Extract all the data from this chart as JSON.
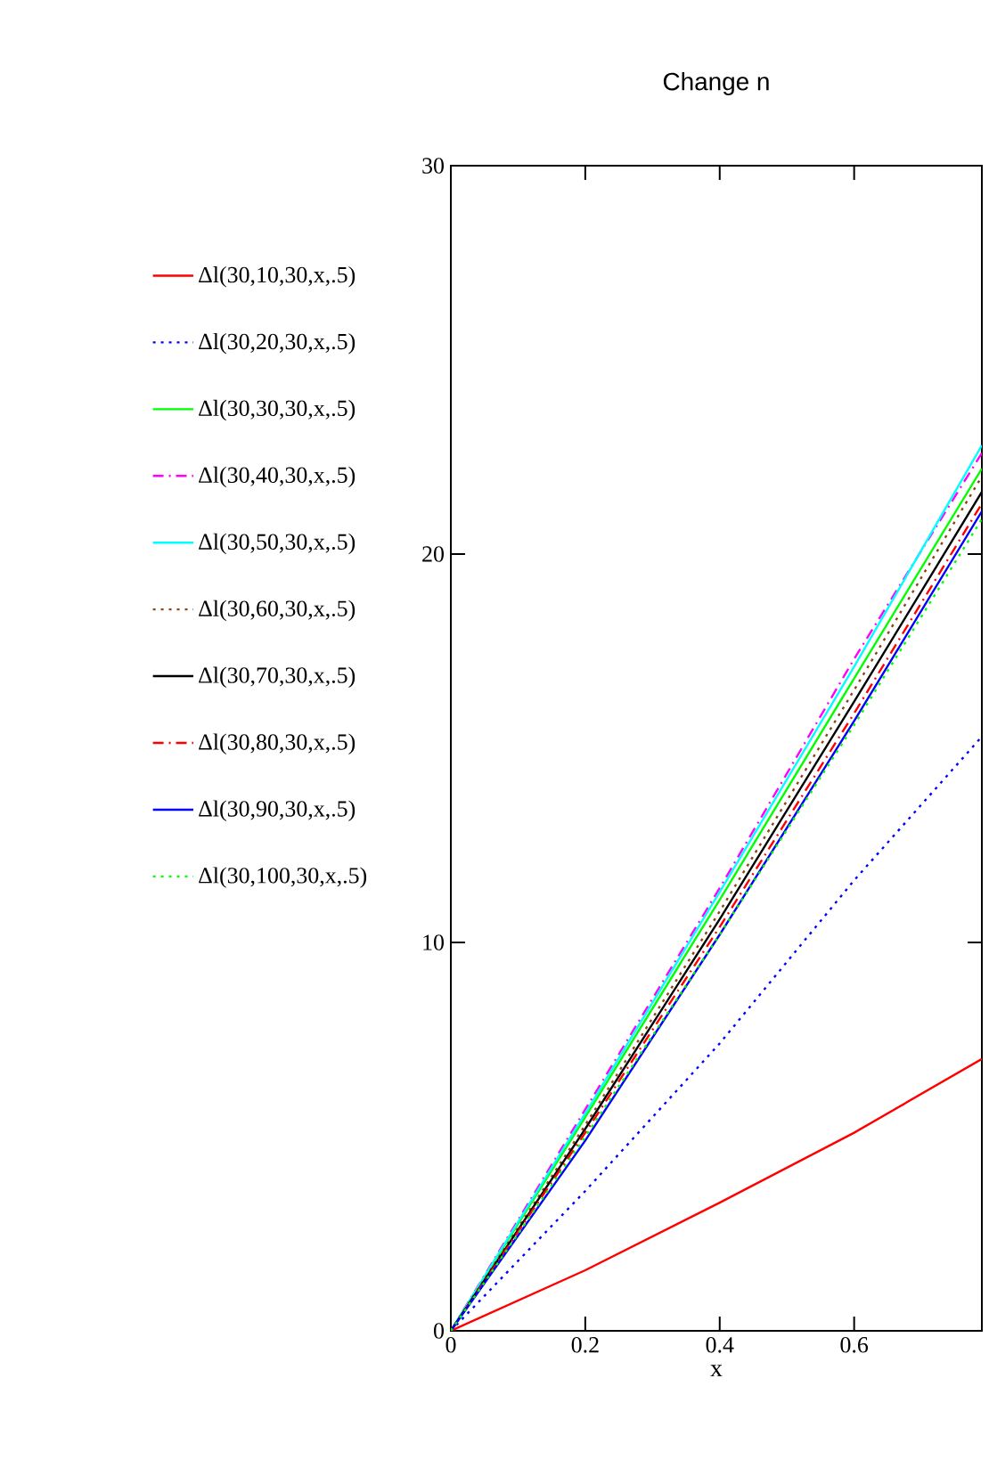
{
  "chart_data": {
    "type": "line",
    "title": "Change n",
    "xlabel": "x",
    "x": [
      0,
      0.2,
      0.4,
      0.6,
      0.79
    ],
    "xlim": [
      0,
      0.79
    ],
    "ylim": [
      0,
      30
    ],
    "xticks": [
      0,
      0.2,
      0.4,
      0.6
    ],
    "yticks": [
      0,
      10,
      20,
      30
    ],
    "grid": false,
    "legend": "left",
    "marker": "none",
    "series": [
      {
        "name": "Δl(30,10,30,x,.5)",
        "color": "#ff0000",
        "line_style": "solid",
        "values": [
          0,
          1.56,
          3.3,
          5.1,
          7.0
        ]
      },
      {
        "name": "Δl(30,20,30,x,.5)",
        "color": "#0000ff",
        "line_style": "dotted",
        "values": [
          0,
          3.6,
          7.4,
          11.6,
          15.3
        ]
      },
      {
        "name": "Δl(30,30,30,x,.5)",
        "color": "#00ff00",
        "line_style": "solid",
        "values": [
          0,
          5.5,
          11.1,
          16.8,
          22.2
        ]
      },
      {
        "name": "Δl(30,40,30,x,.5)",
        "color": "#ff00ff",
        "line_style": "dashed",
        "values": [
          0,
          5.7,
          11.4,
          17.3,
          22.6
        ]
      },
      {
        "name": "Δl(30,50,30,x,.5)",
        "color": "#00ffff",
        "line_style": "solid",
        "values": [
          0,
          5.6,
          11.3,
          17.1,
          22.8
        ]
      },
      {
        "name": "Δl(30,60,30,x,.5)",
        "color": "#8b4513",
        "line_style": "dotted",
        "values": [
          0,
          5.3,
          10.8,
          16.5,
          22.0
        ]
      },
      {
        "name": "Δl(30,70,30,x,.5)",
        "color": "#000000",
        "line_style": "solid",
        "values": [
          0,
          5.2,
          10.6,
          16.2,
          21.6
        ]
      },
      {
        "name": "Δl(30,80,30,x,.5)",
        "color": "#ff0000",
        "line_style": "dashed",
        "values": [
          0,
          5.1,
          10.4,
          15.9,
          21.3
        ]
      },
      {
        "name": "Δl(30,90,30,x,.5)",
        "color": "#0000ff",
        "line_style": "solid",
        "values": [
          0,
          4.9,
          10.2,
          15.7,
          21.1
        ]
      },
      {
        "name": "Δl(30,100,30,x,.5)",
        "color": "#00ff00",
        "line_style": "dotted",
        "values": [
          0,
          5.0,
          10.2,
          15.6,
          20.9
        ]
      }
    ]
  }
}
